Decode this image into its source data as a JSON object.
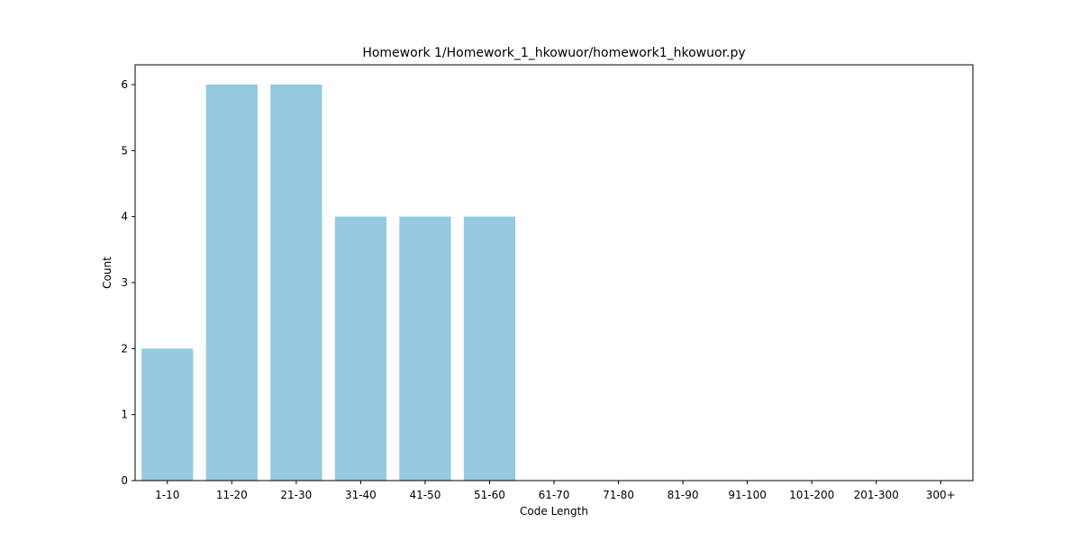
{
  "chart_data": {
    "type": "bar",
    "title": "Homework 1/Homework_1_hkowuor/homework1_hkowuor.py",
    "xlabel": "Code Length",
    "ylabel": "Count",
    "categories": [
      "1-10",
      "11-20",
      "21-30",
      "31-40",
      "41-50",
      "51-60",
      "61-70",
      "71-80",
      "81-90",
      "91-100",
      "101-200",
      "201-300",
      "300+"
    ],
    "values": [
      2,
      6,
      6,
      4,
      4,
      4,
      0,
      0,
      0,
      0,
      0,
      0,
      0
    ],
    "ylim": [
      0,
      6.3
    ],
    "yticks": [
      0,
      1,
      2,
      3,
      4,
      5,
      6
    ],
    "bar_color": "#95c9df",
    "grid": false,
    "legend": "none"
  }
}
